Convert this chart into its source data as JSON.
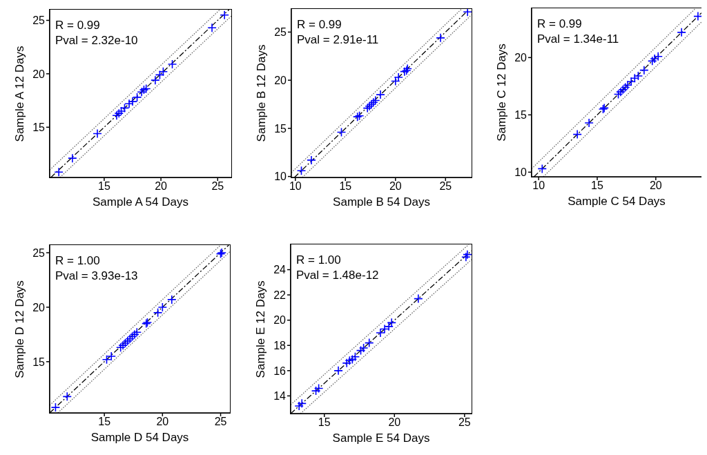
{
  "chart_data": [
    {
      "type": "scatter",
      "xlabel": "Sample A 54 Days",
      "ylabel": "Sample A 12 Days",
      "annotations": [
        "R = 0.99",
        "Pval = 2.32e-10"
      ],
      "xlim": [
        10.2,
        26.2
      ],
      "ylim": [
        10.3,
        26.0
      ],
      "xticks": [
        15,
        20,
        25
      ],
      "yticks": [
        15,
        20,
        25
      ],
      "legend": false,
      "series": [
        {
          "type": "scatter",
          "marker": "cross",
          "color": "#0000ff",
          "x": [
            11,
            12.2,
            14.4,
            16.1,
            16.3,
            16.5,
            16.8,
            17.2,
            17.5,
            17.9,
            18.3,
            18.5,
            18.7,
            19.5,
            19.9,
            20.2,
            21,
            24.5,
            25.6
          ],
          "values": [
            10.8,
            12.1,
            14.4,
            16.1,
            16.3,
            16.5,
            16.8,
            17.2,
            17.4,
            17.8,
            18.3,
            18.5,
            18.6,
            19.4,
            19.9,
            20.2,
            20.9,
            24.3,
            25.5
          ]
        },
        {
          "type": "line",
          "line_style": "dashed",
          "color": "#000000",
          "x": [
            10.3,
            26.0
          ],
          "values": [
            10.3,
            26.0
          ]
        },
        {
          "type": "line",
          "line_style": "dotted",
          "color": "#666666",
          "x": [
            10.2,
            25.2
          ],
          "values": [
            11.0,
            26.0
          ]
        },
        {
          "type": "line",
          "line_style": "dotted",
          "color": "#666666",
          "x": [
            11.1,
            26.2
          ],
          "values": [
            10.3,
            25.4
          ]
        }
      ]
    },
    {
      "type": "scatter",
      "xlabel": "Sample B 54 Days",
      "ylabel": "Sample B 12 Days",
      "annotations": [
        "R = 0.99",
        "Pval = 2.91e-11"
      ],
      "xlim": [
        9.6,
        27.6
      ],
      "ylim": [
        9.9,
        27.4
      ],
      "xticks": [
        10,
        15,
        20,
        25
      ],
      "yticks": [
        10,
        15,
        20,
        25
      ],
      "legend": false,
      "series": [
        {
          "type": "scatter",
          "marker": "cross",
          "color": "#0000ff",
          "x": [
            10.6,
            11.6,
            14.6,
            16.2,
            16.4,
            17.2,
            17.4,
            17.6,
            17.8,
            18.0,
            18.5,
            20.0,
            20.3,
            20.9,
            21.1,
            21.2,
            24.5,
            27.2
          ],
          "values": [
            10.6,
            11.7,
            14.6,
            16.2,
            16.3,
            17.1,
            17.3,
            17.5,
            17.7,
            17.9,
            18.5,
            19.9,
            20.3,
            20.9,
            21.0,
            21.2,
            24.4,
            27.1
          ]
        },
        {
          "type": "line",
          "line_style": "dashed",
          "color": "#000000",
          "x": [
            9.9,
            27.4
          ],
          "values": [
            9.9,
            27.4
          ]
        },
        {
          "type": "line",
          "line_style": "dotted",
          "color": "#666666",
          "x": [
            9.6,
            26.6
          ],
          "values": [
            10.4,
            27.4
          ]
        },
        {
          "type": "line",
          "line_style": "dotted",
          "color": "#666666",
          "x": [
            10.7,
            27.6
          ],
          "values": [
            9.9,
            26.8
          ]
        }
      ]
    },
    {
      "type": "scatter",
      "xlabel": "Sample C 54 Days",
      "ylabel": "Sample C 12 Days",
      "annotations": [
        "R = 0.99",
        "Pval = 1.34e-11"
      ],
      "xlim": [
        9.4,
        23.9
      ],
      "ylim": [
        9.6,
        24.3
      ],
      "xticks": [
        10,
        15,
        20
      ],
      "yticks": [
        10,
        15,
        20
      ],
      "legend": false,
      "series": [
        {
          "type": "scatter",
          "marker": "cross",
          "color": "#0000ff",
          "x": [
            10.3,
            13.3,
            14.3,
            15.5,
            15.6,
            16.8,
            17.0,
            17.2,
            17.4,
            17.6,
            17.9,
            18.2,
            18.5,
            19.0,
            19.7,
            19.9,
            20.2,
            22.2,
            23.6
          ],
          "values": [
            10.3,
            13.3,
            14.3,
            15.5,
            15.6,
            16.8,
            17.0,
            17.2,
            17.4,
            17.6,
            17.9,
            18.2,
            18.4,
            18.9,
            19.7,
            19.9,
            20.1,
            22.2,
            23.6
          ]
        },
        {
          "type": "line",
          "line_style": "dashed",
          "color": "#000000",
          "x": [
            9.6,
            23.9
          ],
          "values": [
            9.6,
            23.9
          ]
        },
        {
          "type": "line",
          "line_style": "dotted",
          "color": "#666666",
          "x": [
            9.4,
            23.4
          ],
          "values": [
            10.3,
            24.3
          ]
        },
        {
          "type": "line",
          "line_style": "dotted",
          "color": "#666666",
          "x": [
            10.4,
            23.9
          ],
          "values": [
            9.6,
            23.1
          ]
        }
      ]
    },
    {
      "type": "scatter",
      "xlabel": "Sample D 54 Days",
      "ylabel": "Sample D 12 Days",
      "annotations": [
        "R = 1.00",
        "Pval = 3.93e-13"
      ],
      "xlim": [
        10.3,
        25.8
      ],
      "ylim": [
        10.3,
        25.7
      ],
      "xticks": [
        15,
        20,
        25
      ],
      "yticks": [
        15,
        20,
        25
      ],
      "legend": false,
      "series": [
        {
          "type": "scatter",
          "marker": "cross",
          "color": "#0000ff",
          "x": [
            10.8,
            11.8,
            15.2,
            15.6,
            16.4,
            16.6,
            16.8,
            17.0,
            17.2,
            17.4,
            17.6,
            17.8,
            18.6,
            18.7,
            19.6,
            20.0,
            20.8,
            25.0,
            25.1
          ],
          "values": [
            10.8,
            11.8,
            15.2,
            15.5,
            16.3,
            16.5,
            16.7,
            16.9,
            17.1,
            17.3,
            17.5,
            17.7,
            18.5,
            18.6,
            19.5,
            20.0,
            20.7,
            24.9,
            25.0
          ]
        },
        {
          "type": "line",
          "line_style": "dashed",
          "color": "#000000",
          "x": [
            10.3,
            25.7
          ],
          "values": [
            10.3,
            25.7
          ]
        },
        {
          "type": "line",
          "line_style": "dotted",
          "color": "#666666",
          "x": [
            10.3,
            25.0
          ],
          "values": [
            11.0,
            25.7
          ]
        },
        {
          "type": "line",
          "line_style": "dotted",
          "color": "#666666",
          "x": [
            11.0,
            25.8
          ],
          "values": [
            10.3,
            25.1
          ]
        }
      ]
    },
    {
      "type": "scatter",
      "xlabel": "Sample E 54 Days",
      "ylabel": "Sample E 12 Days",
      "annotations": [
        "R = 1.00",
        "Pval = 1.48e-12"
      ],
      "xlim": [
        12.6,
        25.5
      ],
      "ylim": [
        12.6,
        26.0
      ],
      "xticks": [
        15,
        20,
        25
      ],
      "yticks": [
        14,
        16,
        18,
        20,
        22,
        24
      ],
      "legend": false,
      "series": [
        {
          "type": "scatter",
          "marker": "cross",
          "color": "#0000ff",
          "x": [
            13.2,
            13.4,
            14.4,
            14.6,
            16.0,
            16.6,
            16.8,
            17.0,
            17.2,
            17.6,
            17.8,
            18.2,
            19.0,
            19.3,
            19.6,
            19.8,
            21.7,
            25.1,
            25.2
          ],
          "values": [
            13.2,
            13.4,
            14.4,
            14.6,
            16.0,
            16.6,
            16.8,
            16.9,
            17.1,
            17.6,
            17.8,
            18.2,
            19.0,
            19.3,
            19.5,
            19.8,
            21.7,
            25.0,
            25.2
          ]
        },
        {
          "type": "line",
          "line_style": "dashed",
          "color": "#000000",
          "x": [
            12.6,
            25.5
          ],
          "values": [
            12.6,
            25.5
          ]
        },
        {
          "type": "line",
          "line_style": "dotted",
          "color": "#666666",
          "x": [
            12.6,
            25.3
          ],
          "values": [
            13.3,
            26.0
          ]
        },
        {
          "type": "line",
          "line_style": "dotted",
          "color": "#666666",
          "x": [
            13.3,
            25.5
          ],
          "values": [
            12.6,
            24.8
          ]
        }
      ]
    }
  ]
}
